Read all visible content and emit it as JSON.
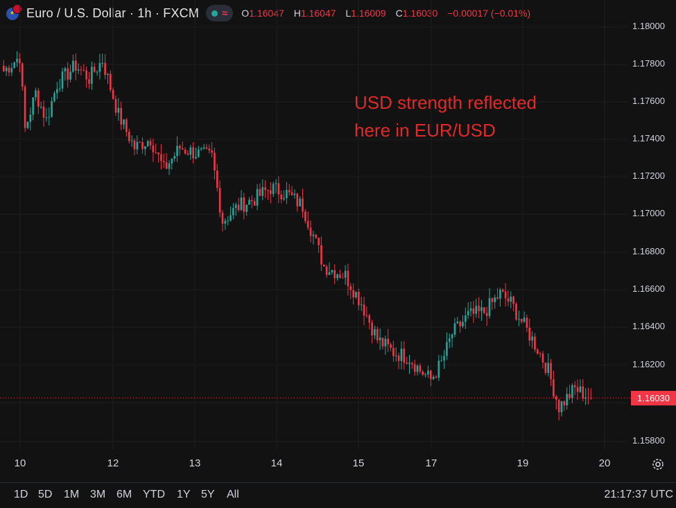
{
  "header": {
    "title": "Euro / U.S. Dollar · 1h · FXCM",
    "ohlc": [
      {
        "k": "O",
        "v": "1.16047"
      },
      {
        "k": "H",
        "v": "1.16047"
      },
      {
        "k": "L",
        "v": "1.16009"
      },
      {
        "k": "C",
        "v": "1.16030"
      }
    ],
    "change": "−0.00017 (−0.01%)"
  },
  "annotation": {
    "line1": "USD strength reflected",
    "line2": "here in EUR/USD"
  },
  "last_price": "1.16030",
  "y_ticks": [
    "1.18000",
    "1.17800",
    "1.17600",
    "1.17400",
    "1.17200",
    "1.17000",
    "1.16800",
    "1.16600",
    "1.16400",
    "1.16200",
    "1.16000",
    "1.15800"
  ],
  "x_ticks": [
    "10",
    "12",
    "13",
    "14",
    "15",
    "17",
    "19",
    "20"
  ],
  "ranges": [
    "1D",
    "5D",
    "1M",
    "3M",
    "6M",
    "YTD",
    "1Y",
    "5Y",
    "All"
  ],
  "clock": "21:17:37 UTC",
  "colors": {
    "up": "#26a69a",
    "down": "#f23645",
    "background": "#121212",
    "annotation": "#e02a2a"
  },
  "chart_data": {
    "type": "candlestick",
    "y_range": [
      1.1578,
      1.1808
    ],
    "anchors": [
      [
        0,
        1.1782
      ],
      [
        6,
        1.179
      ],
      [
        8,
        1.175
      ],
      [
        12,
        1.177
      ],
      [
        16,
        1.1755
      ],
      [
        20,
        1.1775
      ],
      [
        27,
        1.1785
      ],
      [
        32,
        1.1778
      ],
      [
        37,
        1.1788
      ],
      [
        43,
        1.1758
      ],
      [
        49,
        1.174
      ],
      [
        55,
        1.1745
      ],
      [
        60,
        1.1728
      ],
      [
        66,
        1.174
      ],
      [
        72,
        1.1737
      ],
      [
        78,
        1.1735
      ],
      [
        82,
        1.17
      ],
      [
        88,
        1.1708
      ],
      [
        94,
        1.1712
      ],
      [
        100,
        1.1718
      ],
      [
        106,
        1.1715
      ],
      [
        112,
        1.1708
      ],
      [
        116,
        1.1692
      ],
      [
        120,
        1.1675
      ],
      [
        128,
        1.167
      ],
      [
        134,
        1.1655
      ],
      [
        140,
        1.1635
      ],
      [
        146,
        1.1628
      ],
      [
        152,
        1.1625
      ],
      [
        156,
        1.1618
      ],
      [
        160,
        1.1613
      ],
      [
        164,
        1.1622
      ],
      [
        168,
        1.1638
      ],
      [
        174,
        1.1648
      ],
      [
        180,
        1.165
      ],
      [
        186,
        1.166
      ],
      [
        190,
        1.1655
      ],
      [
        196,
        1.164
      ],
      [
        200,
        1.163
      ],
      [
        204,
        1.1618
      ],
      [
        208,
        1.1598
      ],
      [
        214,
        1.1608
      ],
      [
        220,
        1.1603
      ]
    ]
  }
}
